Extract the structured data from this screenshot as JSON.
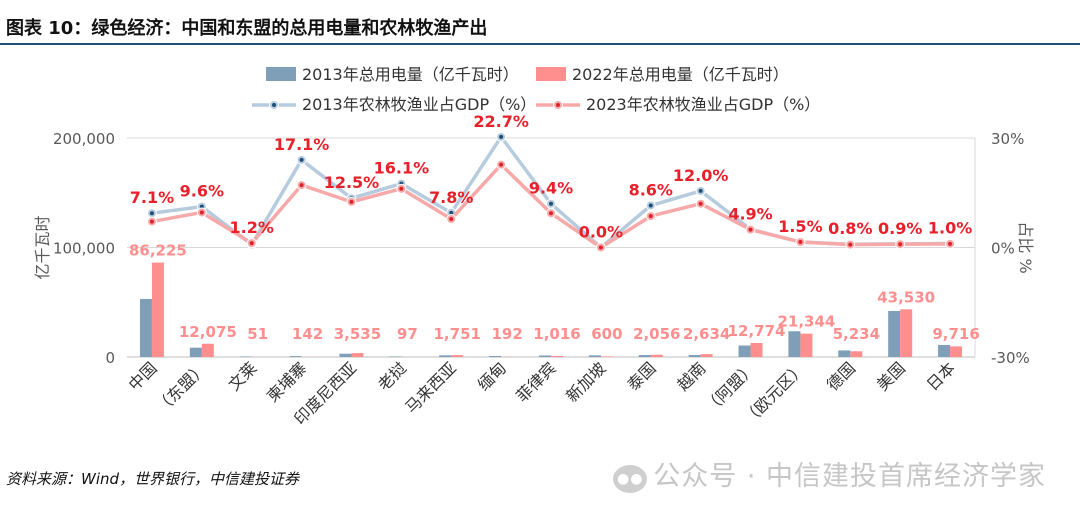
{
  "header": {
    "title": "图表 10：绿色经济：中国和东盟的总用电量和农林牧渔产出"
  },
  "footer": {
    "source": "资料来源：Wind，世界银行，中信建投证券",
    "watermark": "公众号 · 中信建投首席经济学家"
  },
  "colors": {
    "bar2013": "#7f9fb8",
    "bar2022": "#ff8f8f",
    "line2013": "#b6cbdd",
    "line2023": "#f7a8a8",
    "marker2013": "#1f4e79",
    "marker2023": "#e0202a",
    "label": "#e8202a",
    "axis": "#595959",
    "grid": "#d9d9d9"
  },
  "chart_data": {
    "type": "bar",
    "categories": [
      "中国",
      "（东盟）",
      "文莱",
      "柬埔寨",
      "印度尼西亚",
      "老挝",
      "马来西亚",
      "缅甸",
      "菲律宾",
      "新加坡",
      "泰国",
      "越南",
      "（阿盟）",
      "（欧元区）",
      "德国",
      "美国",
      "日本"
    ],
    "series": [
      {
        "name": "2013年总用电量（亿千瓦时）",
        "type": "bar",
        "axis": "left",
        "values": [
          53000,
          8500,
          500,
          800,
          3000,
          500,
          1500,
          900,
          1400,
          1500,
          1800,
          1800,
          10500,
          23500,
          6000,
          42000,
          11000
        ]
      },
      {
        "name": "2022年总用电量（亿千瓦时）",
        "type": "bar",
        "axis": "left",
        "values": [
          86225,
          12075,
          51,
          142,
          3535,
          97,
          1751,
          192,
          1016,
          600,
          2056,
          2634,
          12774,
          21344,
          5234,
          43530,
          9716
        ],
        "labels": [
          "86,225",
          "12,075",
          "51",
          "142",
          "3,535",
          "97",
          "1,751",
          "192",
          "1,016",
          "600",
          "2,056",
          "2,634",
          "12,774",
          "21,344",
          "5,234",
          "43,530",
          "9,716"
        ]
      },
      {
        "name": "2013年农林牧渔业占GDP（%）",
        "type": "line",
        "axis": "right",
        "values": [
          9.4,
          11.2,
          0.8,
          24.0,
          13.5,
          17.5,
          9.5,
          30.3,
          12.0,
          0.0,
          11.5,
          15.5,
          5.0,
          1.5,
          0.9,
          1.0,
          1.1
        ]
      },
      {
        "name": "2023年农林牧渔业占GDP（%）",
        "type": "line",
        "axis": "right",
        "values": [
          7.1,
          9.6,
          1.2,
          17.1,
          12.5,
          16.1,
          7.8,
          22.7,
          9.4,
          0.0,
          8.6,
          12.0,
          4.9,
          1.5,
          0.8,
          0.9,
          1.0
        ],
        "labels": [
          "7.1%",
          "9.6%",
          "1.2%",
          "17.1%",
          "12.5%",
          "16.1%",
          "7.8%",
          "22.7%",
          "9.4%",
          "0.0%",
          "8.6%",
          "12.0%",
          "4.9%",
          "1.5%",
          "0.8%",
          "0.9%",
          "1.0%"
        ]
      }
    ],
    "y_left": {
      "label": "亿千瓦时",
      "ylim": [
        0,
        200000
      ],
      "ticks": [
        0,
        100000,
        200000
      ],
      "tick_labels": [
        "0",
        "100,000",
        "200,000"
      ]
    },
    "y_right": {
      "label": "占比 %",
      "ylim": [
        -30,
        30
      ],
      "ticks": [
        -30,
        0,
        30
      ],
      "tick_labels": [
        "-30%",
        "0%",
        "30%"
      ]
    },
    "grid": true,
    "legend": "top"
  }
}
